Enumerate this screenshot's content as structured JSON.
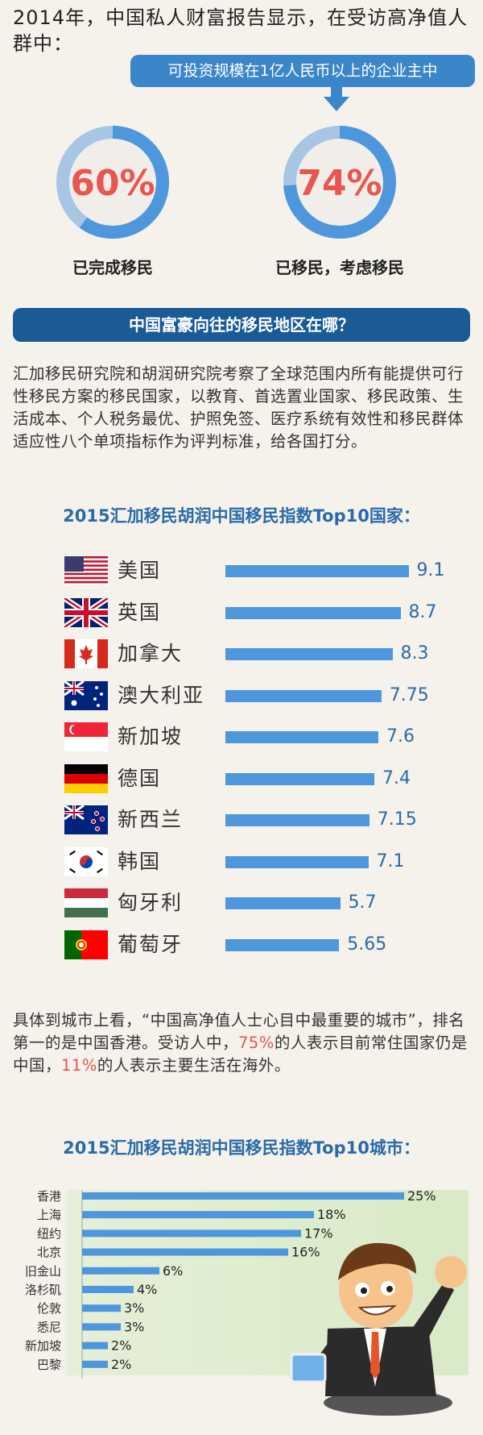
{
  "intro_text": "2014年，中国私人财富报告显示，在受访高净值人群中：",
  "callout_text": "可投资规模在1亿人民币以上的企业主中",
  "stats": [
    {
      "value": "60%",
      "fraction": 0.6,
      "label": "已完成移民"
    },
    {
      "value": "74%",
      "fraction": 0.74,
      "label": "已移民，考虑移民"
    }
  ],
  "banner_title": "中国富豪向往的移民地区在哪？",
  "paragraph1": "汇加移民研究院和胡润研究院考察了全球范围内所有能提供可行性移民方案的移民国家，以教育、首选置业国家、移民政策、生活成本、个人税务最优、护照免签、医疗系统有效性和移民群体适应性八个单项指标作为评判标准，给各国打分。",
  "countries_heading": "2015汇加移民胡润中国移民指数Top10国家：",
  "paragraph2": {
    "part1": "具体到城市上看，“中国高净值人士心目中最重要的城市”，排名第一的是中国香港。受访人中，",
    "red1": "75%",
    "part2": "的人表示目前常住国家仍是中国，",
    "red2": "11%",
    "part3": "的人表示主要生活在海外。"
  },
  "cities_heading": "2015汇加移民胡润中国移民指数Top10城市：",
  "colors": {
    "bar": "#4f97dc",
    "accent_red": "#e8574f",
    "banner": "#1a5a95",
    "callout": "#3b86c9"
  },
  "chart_data": [
    {
      "type": "bar",
      "orientation": "horizontal",
      "title": "2015汇加移民胡润中国移民指数Top10国家：",
      "categories": [
        "美国",
        "英国",
        "加拿大",
        "澳大利亚",
        "新加坡",
        "德国",
        "新西兰",
        "韩国",
        "匈牙利",
        "葡萄牙"
      ],
      "values": [
        9.1,
        8.7,
        8.3,
        7.75,
        7.6,
        7.4,
        7.15,
        7.1,
        5.7,
        5.65
      ],
      "value_labels": [
        "9.1",
        "8.7",
        "8.3",
        "7.75",
        "7.6",
        "7.4",
        "7.15",
        "7.1",
        "5.7",
        "5.65"
      ],
      "flags": [
        "usa-flag",
        "uk-flag",
        "canada-flag",
        "australia-flag",
        "singapore-flag",
        "germany-flag",
        "new-zealand-flag",
        "korea-flag",
        "hungary-flag",
        "portugal-flag"
      ]
    },
    {
      "type": "bar",
      "orientation": "horizontal",
      "title": "2015汇加移民胡润中国移民指数Top10城市：",
      "categories": [
        "香港",
        "上海",
        "纽约",
        "北京",
        "旧金山",
        "洛杉矶",
        "伦敦",
        "悉尼",
        "新加坡",
        "巴黎"
      ],
      "values": [
        25,
        18,
        17,
        16,
        6,
        4,
        3,
        3,
        2,
        2
      ],
      "value_labels": [
        "25%",
        "18%",
        "17%",
        "16%",
        "6%",
        "4%",
        "3%",
        "3%",
        "2%",
        "2%"
      ],
      "unit": "%"
    }
  ]
}
